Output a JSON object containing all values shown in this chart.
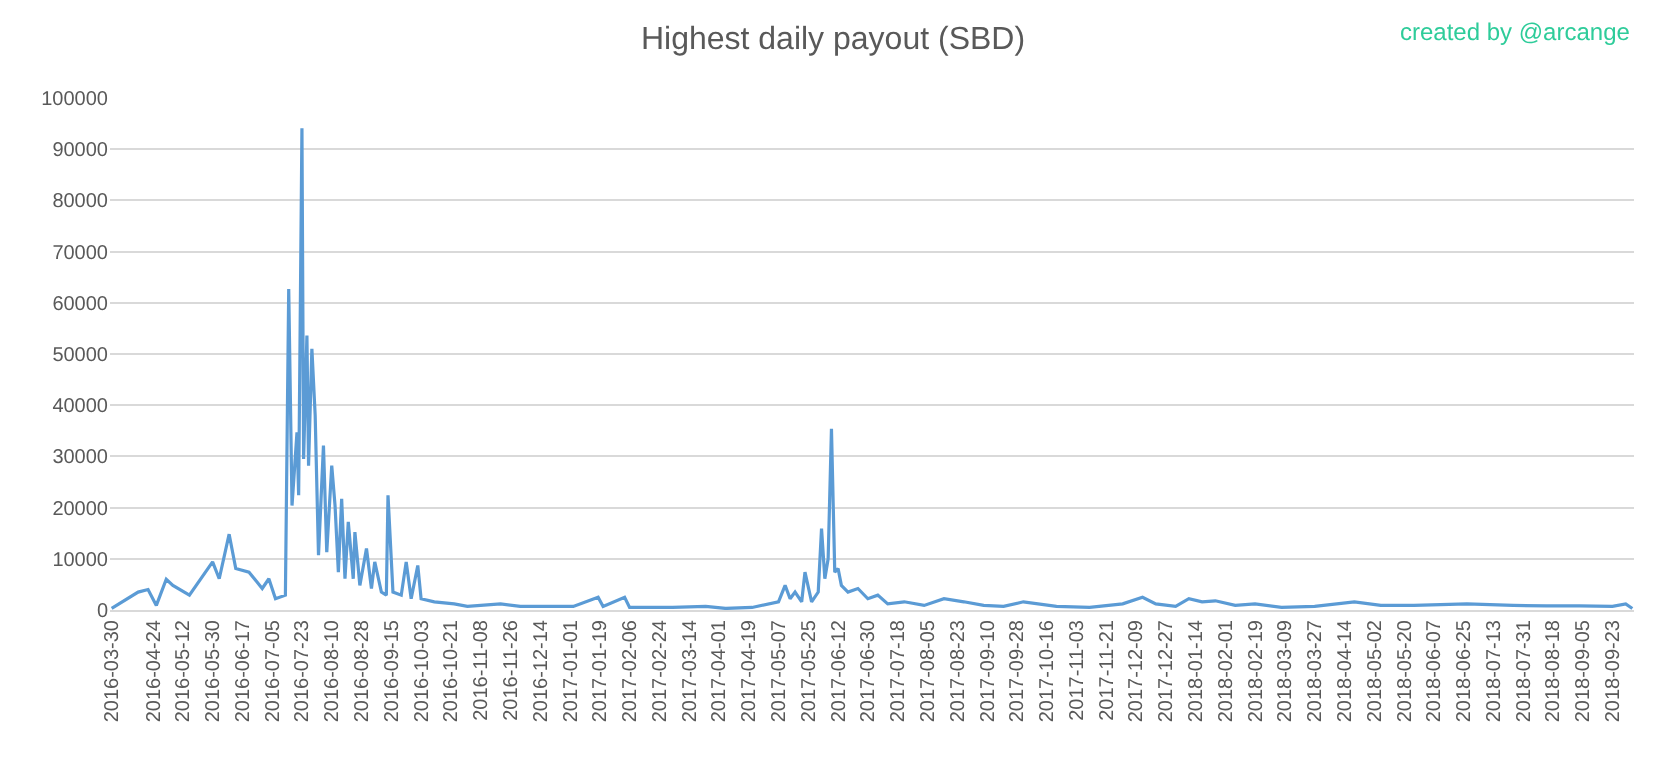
{
  "chart_data": {
    "type": "line",
    "title": "Highest daily payout (SBD)",
    "annotations": [
      "created by @arcange"
    ],
    "x": [
      "2016-03-30",
      "2016-04-15",
      "2016-04-21",
      "2016-04-26",
      "2016-05-02",
      "2016-05-06",
      "2016-05-16",
      "2016-05-30",
      "2016-06-03",
      "2016-06-09",
      "2016-06-13",
      "2016-06-21",
      "2016-06-29",
      "2016-07-03",
      "2016-07-07",
      "2016-07-13",
      "2016-07-15",
      "2016-07-17",
      "2016-07-20",
      "2016-07-21",
      "2016-07-23",
      "2016-07-24",
      "2016-07-26",
      "2016-07-27",
      "2016-07-29",
      "2016-07-31",
      "2016-08-02",
      "2016-08-05",
      "2016-08-07",
      "2016-08-10",
      "2016-08-12",
      "2016-08-14",
      "2016-08-16",
      "2016-08-18",
      "2016-08-20",
      "2016-08-23",
      "2016-08-24",
      "2016-08-27",
      "2016-08-31",
      "2016-09-03",
      "2016-09-05",
      "2016-09-09",
      "2016-09-12",
      "2016-09-13",
      "2016-09-16",
      "2016-09-21",
      "2016-09-24",
      "2016-09-27",
      "2016-10-01",
      "2016-10-03",
      "2016-10-11",
      "2016-10-23",
      "2016-10-31",
      "2016-11-20",
      "2016-12-02",
      "2017-01-03",
      "2017-01-18",
      "2017-01-21",
      "2017-02-03",
      "2017-02-06",
      "2017-03-04",
      "2017-03-24",
      "2017-04-05",
      "2017-04-21",
      "2017-05-07",
      "2017-05-11",
      "2017-05-14",
      "2017-05-17",
      "2017-05-21",
      "2017-05-23",
      "2017-05-27",
      "2017-05-31",
      "2017-06-02",
      "2017-06-04",
      "2017-06-06",
      "2017-06-08",
      "2017-06-10",
      "2017-06-12",
      "2017-06-14",
      "2017-06-18",
      "2017-06-24",
      "2017-06-30",
      "2017-07-06",
      "2017-07-12",
      "2017-07-22",
      "2017-08-03",
      "2017-08-15",
      "2017-08-27",
      "2017-09-08",
      "2017-09-20",
      "2017-10-02",
      "2017-10-22",
      "2017-11-11",
      "2017-12-01",
      "2017-12-13",
      "2017-12-21",
      "2018-01-02",
      "2018-01-10",
      "2018-01-18",
      "2018-01-26",
      "2018-02-07",
      "2018-02-19",
      "2018-03-07",
      "2018-03-27",
      "2018-04-20",
      "2018-05-06",
      "2018-05-26",
      "2018-06-27",
      "2018-07-25",
      "2018-08-14",
      "2018-09-03",
      "2018-09-23",
      "2018-10-01",
      "2018-10-05"
    ],
    "series": [
      {
        "color": "#5b9bd5",
        "values": [
          300,
          3500,
          4000,
          900,
          6000,
          4800,
          2900,
          9400,
          6100,
          14800,
          8100,
          7400,
          4200,
          6100,
          2200,
          2900,
          62700,
          20400,
          34700,
          22400,
          94100,
          29500,
          53600,
          28200,
          51000,
          38000,
          10700,
          32100,
          11300,
          28200,
          20400,
          7400,
          21700,
          6100,
          17200,
          6100,
          15200,
          4800,
          12000,
          4200,
          9400,
          3500,
          2900,
          22400,
          3500,
          2900,
          9400,
          2200,
          8700,
          2200,
          1600,
          1200,
          700,
          1200,
          700,
          700,
          2500,
          700,
          2500,
          500,
          500,
          700,
          300,
          500,
          1600,
          4800,
          2200,
          3500,
          1600,
          7400,
          1600,
          3500,
          15900,
          6100,
          10000,
          35400,
          7400,
          8100,
          4800,
          3500,
          4200,
          2200,
          2900,
          1200,
          1600,
          900,
          2200,
          1600,
          900,
          700,
          1600,
          700,
          500,
          1200,
          2500,
          1200,
          700,
          2200,
          1600,
          1800,
          900,
          1200,
          500,
          700,
          1600,
          900,
          900,
          1200,
          900,
          800,
          800,
          700,
          1200,
          300
        ]
      }
    ],
    "xlim": [
      "2016-03-29",
      "2018-10-06"
    ],
    "xticks": [
      "2016-03-30",
      "2016-04-24",
      "2016-05-12",
      "2016-05-30",
      "2016-06-17",
      "2016-07-05",
      "2016-07-23",
      "2016-08-10",
      "2016-08-28",
      "2016-09-15",
      "2016-10-03",
      "2016-10-21",
      "2016-11-08",
      "2016-11-26",
      "2016-12-14",
      "2017-01-01",
      "2017-01-19",
      "2017-02-06",
      "2017-02-24",
      "2017-03-14",
      "2017-04-01",
      "2017-04-19",
      "2017-05-07",
      "2017-05-25",
      "2017-06-12",
      "2017-06-30",
      "2017-07-18",
      "2017-08-05",
      "2017-08-23",
      "2017-09-10",
      "2017-09-28",
      "2017-10-16",
      "2017-11-03",
      "2017-11-21",
      "2017-12-09",
      "2017-12-27",
      "2018-01-14",
      "2018-02-01",
      "2018-02-19",
      "2018-03-09",
      "2018-03-27",
      "2018-04-14",
      "2018-05-02",
      "2018-05-20",
      "2018-06-07",
      "2018-06-25",
      "2018-07-13",
      "2018-07-31",
      "2018-08-18",
      "2018-09-05",
      "2018-09-23"
    ],
    "ylim": [
      0,
      100000
    ],
    "yticks": [
      0,
      10000,
      20000,
      30000,
      40000,
      50000,
      60000,
      70000,
      80000,
      90000,
      100000
    ],
    "grid": "y",
    "marker": "none",
    "line_style": "solid"
  }
}
